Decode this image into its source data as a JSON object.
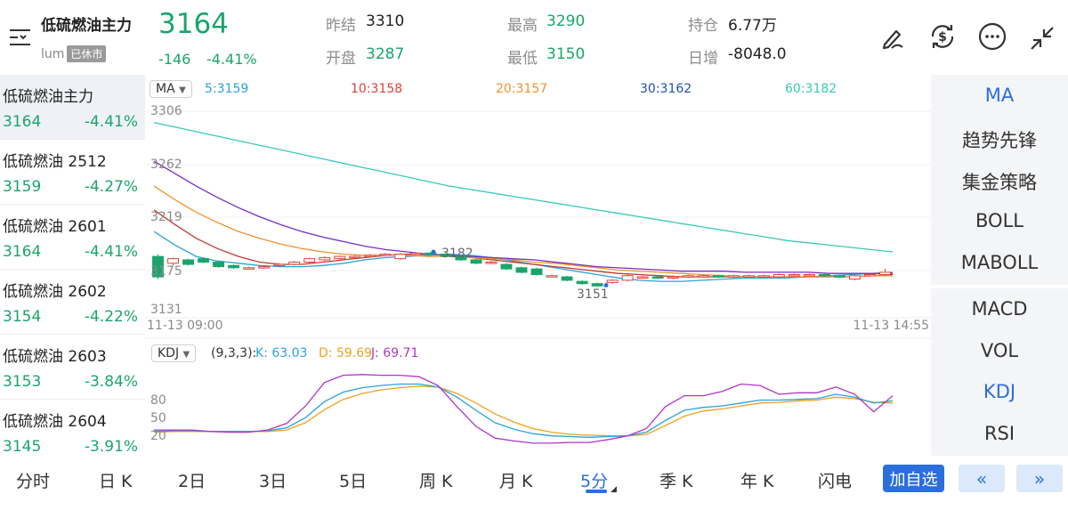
{
  "header": {
    "title": "低硫燃油主力",
    "code": "lum",
    "status_badge": "已休市",
    "last_price": "3164",
    "change": "-146",
    "change_pct": "-4.41%",
    "stats": [
      {
        "label": "昨结",
        "value": "3310",
        "color": "#222222"
      },
      {
        "label": "开盘",
        "value": "3287",
        "color": "#1aa56b"
      },
      {
        "label": "最高",
        "value": "3290",
        "color": "#1aa56b"
      },
      {
        "label": "最低",
        "value": "3150",
        "color": "#1aa56b"
      },
      {
        "label": "持仓",
        "value": "6.77万",
        "color": "#222222"
      },
      {
        "label": "日增",
        "value": "-8048.0",
        "color": "#222222"
      }
    ],
    "icons": [
      "menu-list-icon",
      "draw-pen-icon",
      "currency-exchange-icon",
      "more-icon",
      "collapse-icon"
    ]
  },
  "contracts": [
    {
      "name": "低硫燃油主力",
      "price": "3164",
      "change_pct": "-4.41%",
      "active": true
    },
    {
      "name": "低硫燃油 2512",
      "price": "3159",
      "change_pct": "-4.27%",
      "active": false
    },
    {
      "name": "低硫燃油 2601",
      "price": "3164",
      "change_pct": "-4.41%",
      "active": false
    },
    {
      "name": "低硫燃油 2602",
      "price": "3154",
      "change_pct": "-4.22%",
      "active": false
    },
    {
      "name": "低硫燃油 2603",
      "price": "3153",
      "change_pct": "-3.84%",
      "active": false
    },
    {
      "name": "低硫燃油 2604",
      "price": "3145",
      "change_pct": "-3.91%",
      "active": false
    }
  ],
  "indicators": [
    {
      "label": "MA",
      "selected": true
    },
    {
      "label": "趋势先锋",
      "selected": false
    },
    {
      "label": "集金策略",
      "selected": false
    },
    {
      "label": "BOLL",
      "selected": false
    },
    {
      "label": "MABOLL",
      "selected": false
    },
    {
      "label": "MACD",
      "selected": false
    },
    {
      "label": "VOL",
      "selected": false
    },
    {
      "label": "KDJ",
      "selected": true
    },
    {
      "label": "RSI",
      "selected": false
    }
  ],
  "ma_legend": {
    "pill": "MA",
    "items": [
      {
        "text": "5:3159",
        "color": "#2aa3d8"
      },
      {
        "text": "10:3158",
        "color": "#e0413a"
      },
      {
        "text": "20:3157",
        "color": "#f0922b"
      },
      {
        "text": "30:3162",
        "color": "#1f4fb5"
      },
      {
        "text": "60:3182",
        "color": "#39c8b8"
      }
    ]
  },
  "kdj_legend": {
    "pill": "KDJ",
    "params": "(9,3,3):",
    "items": [
      {
        "text": "K: 63.03",
        "color": "#2aa3d8"
      },
      {
        "text": "D: 59.69",
        "color": "#f0a020"
      },
      {
        "text": "J: 69.71",
        "color": "#b035c8"
      }
    ]
  },
  "chart_data": {
    "type": "candlestick",
    "price_axis": {
      "ticks": [
        "3306",
        "3262",
        "3219",
        "3175",
        "3131"
      ],
      "ylim": [
        3131,
        3306
      ]
    },
    "time_axis": {
      "start": "11-13 09:00",
      "end": "11-13 14:55"
    },
    "annotations": {
      "high": "3182",
      "low": "3151"
    },
    "candles": [
      {
        "o": 3178,
        "c": 3160,
        "h": 3180,
        "l": 3158
      },
      {
        "o": 3172,
        "c": 3176,
        "h": 3177,
        "l": 3170
      },
      {
        "o": 3175,
        "c": 3171,
        "h": 3176,
        "l": 3170
      },
      {
        "o": 3176,
        "c": 3173,
        "h": 3177,
        "l": 3172
      },
      {
        "o": 3173,
        "c": 3169,
        "h": 3174,
        "l": 3168
      },
      {
        "o": 3170,
        "c": 3168,
        "h": 3171,
        "l": 3167
      },
      {
        "o": 3168,
        "c": 3168,
        "h": 3169,
        "l": 3167
      },
      {
        "o": 3168,
        "c": 3169,
        "h": 3170,
        "l": 3167
      },
      {
        "o": 3170,
        "c": 3171,
        "h": 3172,
        "l": 3169
      },
      {
        "o": 3171,
        "c": 3173,
        "h": 3174,
        "l": 3170
      },
      {
        "o": 3173,
        "c": 3176,
        "h": 3177,
        "l": 3172
      },
      {
        "o": 3175,
        "c": 3177,
        "h": 3178,
        "l": 3174
      },
      {
        "o": 3176,
        "c": 3178,
        "h": 3179,
        "l": 3175
      },
      {
        "o": 3177,
        "c": 3178,
        "h": 3179,
        "l": 3176
      },
      {
        "o": 3178,
        "c": 3179,
        "h": 3180,
        "l": 3177
      },
      {
        "o": 3179,
        "c": 3180,
        "h": 3181,
        "l": 3178
      },
      {
        "o": 3176,
        "c": 3180,
        "h": 3181,
        "l": 3175
      },
      {
        "o": 3180,
        "c": 3181,
        "h": 3182,
        "l": 3179
      },
      {
        "o": 3181,
        "c": 3180,
        "h": 3182,
        "l": 3179
      },
      {
        "o": 3180,
        "c": 3178,
        "h": 3181,
        "l": 3177
      },
      {
        "o": 3178,
        "c": 3175,
        "h": 3179,
        "l": 3174
      },
      {
        "o": 3175,
        "c": 3172,
        "h": 3176,
        "l": 3171
      },
      {
        "o": 3172,
        "c": 3173,
        "h": 3174,
        "l": 3171
      },
      {
        "o": 3171,
        "c": 3167,
        "h": 3172,
        "l": 3166
      },
      {
        "o": 3168,
        "c": 3164,
        "h": 3169,
        "l": 3163
      },
      {
        "o": 3167,
        "c": 3162,
        "h": 3168,
        "l": 3161
      },
      {
        "o": 3161,
        "c": 3161,
        "h": 3162,
        "l": 3160
      },
      {
        "o": 3160,
        "c": 3157,
        "h": 3161,
        "l": 3156
      },
      {
        "o": 3156,
        "c": 3154,
        "h": 3157,
        "l": 3153
      },
      {
        "o": 3154,
        "c": 3152,
        "h": 3155,
        "l": 3151
      },
      {
        "o": 3155,
        "c": 3157,
        "h": 3158,
        "l": 3154
      },
      {
        "o": 3157,
        "c": 3161,
        "h": 3162,
        "l": 3156
      },
      {
        "o": 3160,
        "c": 3160,
        "h": 3161,
        "l": 3159
      },
      {
        "o": 3160,
        "c": 3159,
        "h": 3161,
        "l": 3158
      },
      {
        "o": 3159,
        "c": 3160,
        "h": 3161,
        "l": 3158
      },
      {
        "o": 3160,
        "c": 3161,
        "h": 3162,
        "l": 3159
      },
      {
        "o": 3161,
        "c": 3161,
        "h": 3162,
        "l": 3160
      },
      {
        "o": 3161,
        "c": 3160,
        "h": 3162,
        "l": 3159
      },
      {
        "o": 3160,
        "c": 3161,
        "h": 3162,
        "l": 3159
      },
      {
        "o": 3161,
        "c": 3161,
        "h": 3162,
        "l": 3160
      },
      {
        "o": 3160,
        "c": 3161,
        "h": 3162,
        "l": 3159
      },
      {
        "o": 3160,
        "c": 3162,
        "h": 3163,
        "l": 3159
      },
      {
        "o": 3162,
        "c": 3162,
        "h": 3163,
        "l": 3161
      },
      {
        "o": 3162,
        "c": 3162,
        "h": 3163,
        "l": 3161
      },
      {
        "o": 3162,
        "c": 3161,
        "h": 3163,
        "l": 3160
      },
      {
        "o": 3161,
        "c": 3160,
        "h": 3162,
        "l": 3159
      },
      {
        "o": 3158,
        "c": 3161,
        "h": 3162,
        "l": 3157
      },
      {
        "o": 3161,
        "c": 3162,
        "h": 3163,
        "l": 3160
      },
      {
        "o": 3162,
        "c": 3164,
        "h": 3167,
        "l": 3161
      }
    ],
    "ma": {
      "MA5": [
        3200,
        3188,
        3178,
        3174,
        3172,
        3170,
        3169,
        3169,
        3170,
        3172,
        3175,
        3177,
        3178,
        3179,
        3180,
        3179,
        3177,
        3174,
        3171,
        3168,
        3165,
        3162,
        3159,
        3157,
        3156,
        3156,
        3157,
        3158,
        3159,
        3159,
        3159,
        3160,
        3161,
        3162,
        3163,
        3164
      ],
      "MA10": [
        3219,
        3206,
        3194,
        3185,
        3178,
        3173,
        3171,
        3171,
        3173,
        3175,
        3177,
        3179,
        3180,
        3180,
        3179,
        3177,
        3175,
        3173,
        3171,
        3169,
        3167,
        3165,
        3163,
        3162,
        3161,
        3160,
        3160,
        3160,
        3160,
        3160,
        3160,
        3160,
        3160,
        3160,
        3161,
        3162
      ],
      "MA20": [
        3240,
        3228,
        3217,
        3208,
        3200,
        3194,
        3189,
        3185,
        3182,
        3180,
        3179,
        3179,
        3179,
        3178,
        3178,
        3177,
        3176,
        3175,
        3173,
        3172,
        3170,
        3168,
        3166,
        3165,
        3164,
        3163,
        3162,
        3161,
        3160,
        3160,
        3160,
        3160,
        3160,
        3160,
        3161,
        3161
      ],
      "MA30": [
        3262,
        3251,
        3240,
        3230,
        3221,
        3213,
        3206,
        3200,
        3195,
        3191,
        3187,
        3184,
        3182,
        3180,
        3179,
        3178,
        3177,
        3176,
        3175,
        3173,
        3171,
        3169,
        3168,
        3167,
        3166,
        3165,
        3165,
        3165,
        3164,
        3164,
        3164,
        3164,
        3163,
        3163,
        3163,
        3163
      ],
      "MA60": [
        3296,
        3292,
        3288,
        3284,
        3280,
        3276,
        3272,
        3268,
        3264,
        3260,
        3256,
        3252,
        3248,
        3244,
        3240,
        3237,
        3234,
        3231,
        3228,
        3225,
        3222,
        3219,
        3216,
        3213,
        3210,
        3207,
        3204,
        3201,
        3198,
        3195,
        3192,
        3190,
        3188,
        3186,
        3184,
        3182
      ]
    },
    "kdj": {
      "ticks": [
        "80",
        "50",
        "20"
      ],
      "ylim": [
        0,
        100
      ],
      "K": [
        21,
        22,
        22,
        21,
        21,
        21,
        22,
        26,
        40,
        62,
        75,
        81,
        84,
        86,
        86,
        82,
        68,
        50,
        33,
        24,
        18,
        15,
        14,
        13,
        14,
        15,
        20,
        36,
        50,
        54,
        56,
        60,
        64,
        64,
        65,
        66,
        72,
        68,
        60,
        63
      ],
      "D": [
        20,
        21,
        21,
        21,
        21,
        21,
        21,
        23,
        33,
        51,
        65,
        73,
        78,
        81,
        83,
        82,
        73,
        60,
        45,
        34,
        25,
        20,
        17,
        16,
        15,
        15,
        17,
        29,
        42,
        49,
        52,
        56,
        60,
        61,
        63,
        64,
        68,
        66,
        61,
        60
      ],
      "J": [
        23,
        23,
        23,
        21,
        20,
        20,
        23,
        32,
        56,
        88,
        98,
        99,
        98,
        98,
        96,
        84,
        55,
        28,
        12,
        8,
        5,
        5,
        6,
        6,
        10,
        15,
        25,
        55,
        70,
        70,
        76,
        86,
        84,
        72,
        74,
        74,
        82,
        72,
        48,
        70
      ]
    }
  },
  "tabs": [
    {
      "label": "分时",
      "selected": false
    },
    {
      "label": "日 K",
      "selected": false
    },
    {
      "label": "2日",
      "selected": false
    },
    {
      "label": "3日",
      "selected": false
    },
    {
      "label": "5日",
      "selected": false
    },
    {
      "label": "周 K",
      "selected": false
    },
    {
      "label": "月 K",
      "selected": false
    },
    {
      "label": "5分",
      "selected": true
    },
    {
      "label": "季 K",
      "selected": false
    },
    {
      "label": "年 K",
      "selected": false
    },
    {
      "label": "闪电",
      "selected": false
    }
  ],
  "actions": {
    "add_watchlist": "加自选",
    "prev": "«",
    "next": "»"
  }
}
